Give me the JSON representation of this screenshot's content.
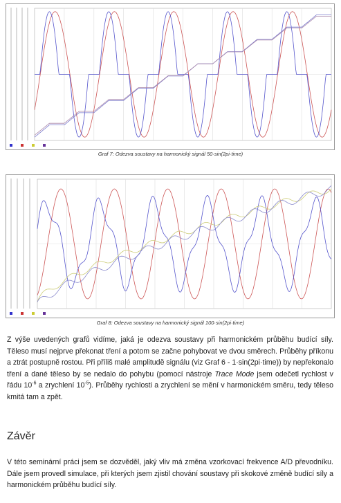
{
  "figures": [
    {
      "caption": "Graf 7: Odezva soustavy na harmonický signál 50·sin(2pi·time)"
    },
    {
      "caption": "Graf 8: Odezva soustavy na harmonický signál 100·sin(2pi·time)"
    }
  ],
  "paragraph_1": [
    "Z výše uvedených grafů vidíme, jaká je odezva soustavy při harmonickém průběhu budící síly. Těleso musí nejprve překonat tření a potom se začne pohybovat ve dvou směrech. Průběhy příkonu a ztrát postupně rostou. Při příliš malé amplitudě signálu (viz Graf 6 - 1·sin(2pi·time)) by nepřekonalo tření a dané těleso by se nedalo do pohybu (pomocí nástroje ",
    "Trace Mode",
    " jsem odečetl rychlost v řádu 10",
    "-6",
    " a zrychlení 10",
    "-5",
    "). Průběhy rychlosti a zrychlení se mění v harmonickém směru, tedy těleso kmitá tam a zpět."
  ],
  "heading": "Závěr",
  "paragraph_2": "V této seminární práci jsem se dozvěděl, jaký vliv má změna vzorkovací frekvence A/D převodníku. Dále jsem provedl simulace, při kterých jsem zjistil chování soustavy při skokové změně budící síly a harmonickém průběhu budící síly."
}
